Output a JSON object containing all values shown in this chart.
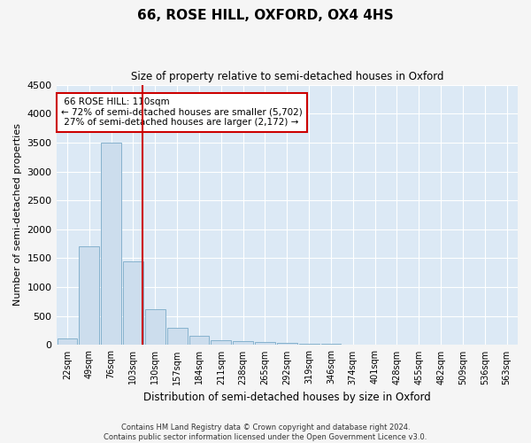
{
  "title": "66, ROSE HILL, OXFORD, OX4 4HS",
  "subtitle": "Size of property relative to semi-detached houses in Oxford",
  "xlabel": "Distribution of semi-detached houses by size in Oxford",
  "ylabel": "Number of semi-detached properties",
  "property_label": "66 ROSE HILL: 110sqm",
  "pct_smaller": 72,
  "count_smaller": 5702,
  "pct_larger": 27,
  "count_larger": 2172,
  "bin_labels": [
    "22sqm",
    "49sqm",
    "76sqm",
    "103sqm",
    "130sqm",
    "157sqm",
    "184sqm",
    "211sqm",
    "238sqm",
    "265sqm",
    "292sqm",
    "319sqm",
    "346sqm",
    "374sqm",
    "401sqm",
    "428sqm",
    "455sqm",
    "482sqm",
    "509sqm",
    "536sqm",
    "563sqm"
  ],
  "bar_values": [
    120,
    1700,
    3500,
    1450,
    620,
    290,
    160,
    80,
    65,
    50,
    30,
    20,
    15,
    10,
    8,
    6,
    5,
    4,
    3,
    2,
    2
  ],
  "bar_color": "#ccdded",
  "bar_edge_color": "#7aaac8",
  "red_line_x": 3.42,
  "red_line_color": "#cc0000",
  "annotation_box_facecolor": "#ffffff",
  "annotation_box_edgecolor": "#cc0000",
  "ylim": [
    0,
    4500
  ],
  "yticks": [
    0,
    500,
    1000,
    1500,
    2000,
    2500,
    3000,
    3500,
    4000,
    4500
  ],
  "bg_color": "#dce9f5",
  "grid_color": "#ffffff",
  "fig_facecolor": "#f5f5f5",
  "footer_text": "Contains HM Land Registry data © Crown copyright and database right 2024.\nContains public sector information licensed under the Open Government Licence v3.0."
}
